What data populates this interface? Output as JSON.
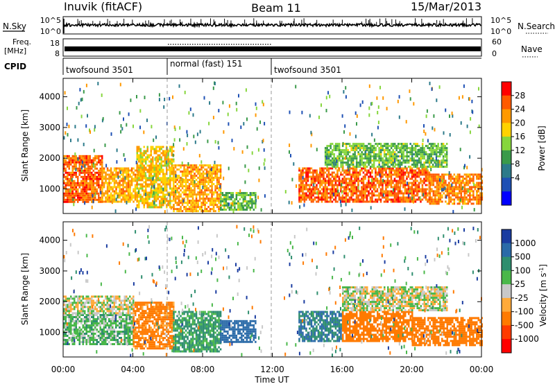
{
  "header": {
    "station": "Inuvik (fitACF)",
    "beam": "Beam 11",
    "date": "15/Mar/2013"
  },
  "noise_panel": {
    "left_label": "N.Sky",
    "right_label": "N.Search",
    "left_ticks": [
      "10^5",
      "10^0"
    ],
    "right_ticks": [
      "10^5",
      "10^0"
    ]
  },
  "freq_panel": {
    "left_label_top": "Freq.",
    "left_label_bottom": "[MHz]",
    "right_label": "Nave",
    "left_ticks": [
      "18",
      "8"
    ],
    "right_ticks": [
      "60",
      "0"
    ]
  },
  "cpid": {
    "label": "CPID",
    "segments": [
      {
        "name": "twofsound 3501",
        "start_h": 0,
        "end_h": 6
      },
      {
        "name": "normal (fast) 151",
        "start_h": 6,
        "end_h": 12
      },
      {
        "name": "twofsound 3501",
        "start_h": 12,
        "end_h": 24
      }
    ]
  },
  "x_axis": {
    "label": "Time UT",
    "ticks": [
      "00:00",
      "04:00",
      "08:00",
      "12:00",
      "16:00",
      "20:00",
      "00:00"
    ],
    "range_h": [
      0,
      24
    ]
  },
  "power_colorbar": {
    "label": "Power [dB]",
    "ticks": [
      "28",
      "24",
      "20",
      "16",
      "12",
      "8",
      "4"
    ],
    "colors": [
      "#ff0000",
      "#ff5a00",
      "#ff9900",
      "#ffd200",
      "#86d63c",
      "#3a9a4a",
      "#2c7a8a",
      "#1e50b4",
      "#0000ff"
    ]
  },
  "velocity_colorbar": {
    "label": "Velocity [m s^-1]",
    "ticks": [
      "1000",
      "500",
      "100",
      "25",
      "-25",
      "-100",
      "-500",
      "-1000"
    ],
    "colors": [
      "#1a3ca0",
      "#2a6aa8",
      "#2e8e6e",
      "#4ab84a",
      "#c8c8c8",
      "#ffaa3a",
      "#ff7a00",
      "#ff3a00",
      "#ff0000"
    ]
  },
  "chart_data": [
    {
      "type": "heatmap",
      "title": "Power",
      "xlabel": "Time UT",
      "ylabel": "Slant Range [km]",
      "xlim_h": [
        0,
        24
      ],
      "ylim_km": [
        200,
        4600
      ],
      "y_ticks": [
        1000,
        2000,
        3000,
        4000
      ],
      "z_label": "Power [dB]",
      "regions": [
        {
          "t0": 0.0,
          "t1": 2.2,
          "r0": 600,
          "r1": 2100,
          "value_db": 26
        },
        {
          "t0": 2.2,
          "t1": 4.2,
          "r0": 600,
          "r1": 1700,
          "value_db": 22
        },
        {
          "t0": 4.2,
          "t1": 6.3,
          "r0": 400,
          "r1": 2400,
          "value_db": 20
        },
        {
          "t0": 6.3,
          "t1": 9.0,
          "r0": 300,
          "r1": 1800,
          "value_db": 22
        },
        {
          "t0": 9.0,
          "t1": 11.0,
          "r0": 300,
          "r1": 900,
          "value_db": 14
        },
        {
          "t0": 13.5,
          "t1": 21.0,
          "r0": 600,
          "r1": 1700,
          "value_db": 26
        },
        {
          "t0": 15.0,
          "t1": 22.0,
          "r0": 1700,
          "r1": 2500,
          "value_db": 14
        },
        {
          "t0": 21.0,
          "t1": 24.0,
          "r0": 500,
          "r1": 1500,
          "value_db": 24
        }
      ]
    },
    {
      "type": "heatmap",
      "title": "Velocity",
      "xlabel": "Time UT",
      "ylabel": "Slant Range [km]",
      "xlim_h": [
        0,
        24
      ],
      "ylim_km": [
        200,
        4600
      ],
      "y_ticks": [
        1000,
        2000,
        3000,
        4000
      ],
      "z_label": "Velocity [m s^-1]",
      "regions": [
        {
          "t0": 0.0,
          "t1": 4.0,
          "r0": 600,
          "r1": 1600,
          "value_ms": 60
        },
        {
          "t0": 0.0,
          "t1": 4.0,
          "r0": 1600,
          "r1": 2200,
          "value_ms": 0
        },
        {
          "t0": 4.0,
          "t1": 6.3,
          "r0": 500,
          "r1": 2000,
          "value_ms": -150
        },
        {
          "t0": 6.3,
          "t1": 9.0,
          "r0": 400,
          "r1": 1700,
          "value_ms": 120
        },
        {
          "t0": 9.0,
          "t1": 11.0,
          "r0": 700,
          "r1": 1400,
          "value_ms": 600
        },
        {
          "t0": 13.5,
          "t1": 16.0,
          "r0": 700,
          "r1": 1700,
          "value_ms": 500
        },
        {
          "t0": 16.0,
          "t1": 20.0,
          "r0": 700,
          "r1": 1700,
          "value_ms": -300
        },
        {
          "t0": 16.0,
          "t1": 22.0,
          "r0": 1700,
          "r1": 2500,
          "value_ms": 0
        },
        {
          "t0": 20.0,
          "t1": 24.0,
          "r0": 600,
          "r1": 1500,
          "value_ms": -400
        }
      ]
    }
  ]
}
